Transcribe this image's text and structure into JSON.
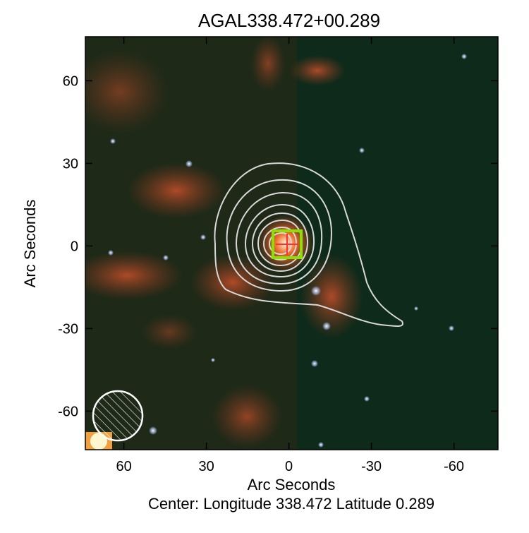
{
  "chart_data": {
    "type": "image",
    "title": "AGAL338.472+00.289",
    "xlabel": "Arc Seconds",
    "ylabel": "Arc Seconds",
    "caption": "Center:  Longitude 338.472 Latitude 0.289",
    "xlim": [
      74,
      -76
    ],
    "xticks": [
      60,
      30,
      0,
      -30,
      -60
    ],
    "ylim": [
      -74,
      76
    ],
    "yticks": [
      60,
      30,
      0,
      -30,
      -60
    ]
  }
}
